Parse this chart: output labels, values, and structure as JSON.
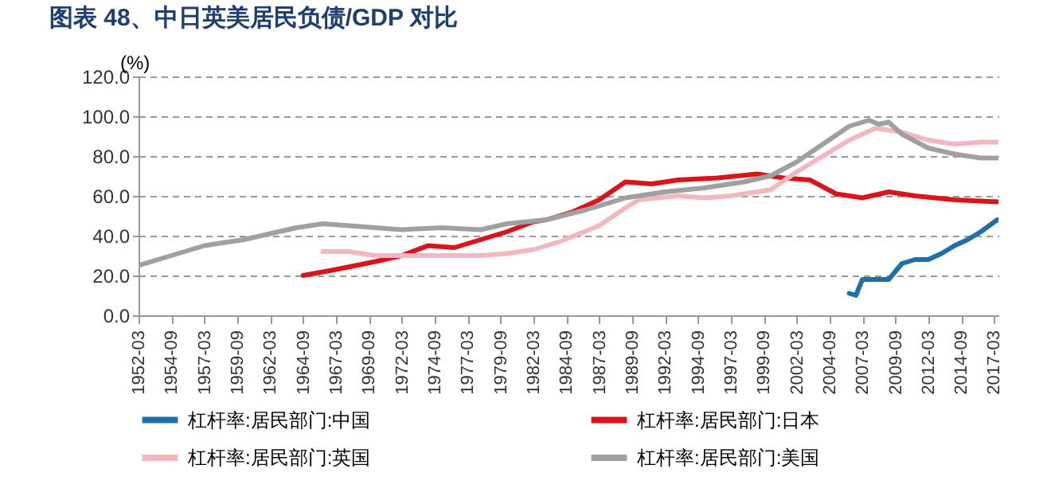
{
  "chart_data": {
    "type": "line",
    "title": "图表 48、中日英美居民负债/GDP 对比",
    "ylabel": "(%)",
    "xlim": [
      "1952-03",
      "2017-07"
    ],
    "xticks": [
      "1952-03",
      "1954-09",
      "1957-03",
      "1959-09",
      "1962-03",
      "1964-09",
      "1967-03",
      "1969-09",
      "1972-03",
      "1974-09",
      "1977-03",
      "1979-09",
      "1982-03",
      "1984-09",
      "1987-03",
      "1989-09",
      "1992-03",
      "1994-09",
      "1997-03",
      "1999-09",
      "2002-03",
      "2004-09",
      "2007-03",
      "2009-09",
      "2012-03",
      "2014-09",
      "2017-03"
    ],
    "ylim": [
      0,
      120
    ],
    "yticks": [
      {
        "value": 0,
        "label": "0.0"
      },
      {
        "value": 20,
        "label": "20.0"
      },
      {
        "value": 40,
        "label": "40.0"
      },
      {
        "value": 60,
        "label": "60.0"
      },
      {
        "value": 80,
        "label": "80.0"
      },
      {
        "value": 100,
        "label": "100.0"
      },
      {
        "value": 120,
        "label": "120.0"
      }
    ],
    "grid": "y",
    "legend": "bottom",
    "line_style": "solid",
    "marker": "none",
    "series": [
      {
        "name": "杠杆率:居民部门:中国",
        "color": "#1f6fa8",
        "x": [
          "2006-03",
          "2006-09",
          "2007-03",
          "2008-03",
          "2009-03",
          "2010-03",
          "2011-03",
          "2012-03",
          "2013-03",
          "2014-03",
          "2015-03",
          "2016-03",
          "2017-06"
        ],
        "values": [
          11,
          10,
          18,
          18,
          18,
          26,
          28,
          28,
          31,
          35,
          38,
          42,
          48
        ]
      },
      {
        "name": "杠杆率:居民部门:日本",
        "color": "#d9141b",
        "x": [
          "1964-09",
          "1967-03",
          "1970-03",
          "1972-03",
          "1974-03",
          "1976-03",
          "1978-03",
          "1980-03",
          "1982-03",
          "1983-03",
          "1985-03",
          "1987-03",
          "1989-03",
          "1991-03",
          "1993-03",
          "1996-03",
          "1999-03",
          "2001-03",
          "2003-03",
          "2005-03",
          "2007-03",
          "2009-03",
          "2011-03",
          "2014-03",
          "2017-06"
        ],
        "values": [
          20,
          23,
          27,
          30,
          35,
          34,
          38,
          42,
          47,
          48,
          52,
          58,
          67,
          66,
          68,
          69,
          71,
          69,
          68,
          61,
          59,
          62,
          60,
          58,
          57
        ]
      },
      {
        "name": "杠杆率:居民部门:英国",
        "color": "#f2b8c0",
        "x": [
          "1966-03",
          "1968-03",
          "1970-03",
          "1972-03",
          "1975-03",
          "1978-03",
          "1980-03",
          "1982-03",
          "1984-03",
          "1987-03",
          "1989-03",
          "1990-03",
          "1993-03",
          "1995-03",
          "1997-03",
          "2000-03",
          "2002-03",
          "2004-03",
          "2006-03",
          "2008-03",
          "2009-03",
          "2010-03",
          "2012-03",
          "2014-03",
          "2016-03",
          "2017-06"
        ],
        "values": [
          32,
          32,
          30,
          30,
          30,
          30,
          31,
          33,
          37,
          45,
          54,
          58,
          60,
          59,
          60,
          63,
          72,
          80,
          88,
          94,
          93,
          92,
          88,
          86,
          87,
          87
        ]
      },
      {
        "name": "杠杆率:居民部门:美国",
        "color": "#a0a0a0",
        "x": [
          "1952-03",
          "1955-03",
          "1957-03",
          "1960-03",
          "1962-03",
          "1964-03",
          "1966-03",
          "1968-03",
          "1970-03",
          "1972-03",
          "1975-03",
          "1978-03",
          "1980-03",
          "1983-03",
          "1986-03",
          "1989-03",
          "1992-03",
          "1995-03",
          "1998-03",
          "2000-03",
          "2002-03",
          "2004-03",
          "2006-03",
          "2007-09",
          "2008-06",
          "2009-03",
          "2010-03",
          "2012-03",
          "2014-03",
          "2016-03",
          "2017-06"
        ],
        "values": [
          25,
          31,
          35,
          38,
          41,
          44,
          46,
          45,
          44,
          43,
          44,
          43,
          46,
          48,
          53,
          59,
          62,
          64,
          67,
          70,
          77,
          86,
          95,
          98,
          96,
          97,
          91,
          84,
          81,
          79,
          79
        ]
      }
    ]
  }
}
